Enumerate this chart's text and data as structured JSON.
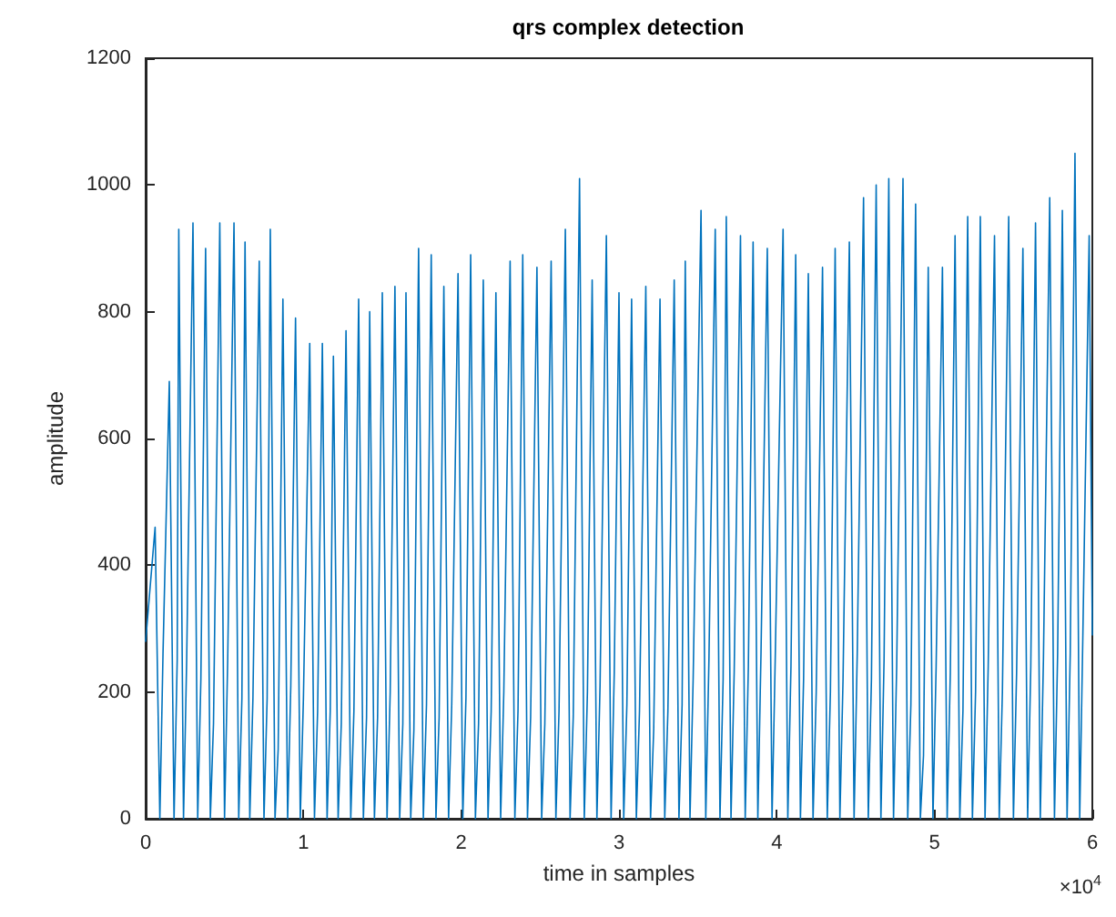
{
  "chart_data": {
    "type": "line",
    "title": "qrs complex detection",
    "xlabel": "time in samples",
    "ylabel": "amplitude",
    "annotations": [
      "×10$^{4}$"
    ],
    "xlim": [
      0,
      6
    ],
    "xticks": [
      0,
      1,
      2,
      3,
      4,
      5,
      6
    ],
    "ylim": [
      0,
      1200
    ],
    "yticks": [
      0,
      200,
      400,
      600,
      800,
      1000,
      1200
    ],
    "grid": false,
    "marker": "none",
    "line_style": "solid",
    "series": [
      {
        "color": "#0072bd",
        "x": [
          0,
          0.06,
          0.09,
          0.11,
          0.15,
          0.18,
          0.2,
          0.21,
          0.24,
          0.26,
          0.3,
          0.33,
          0.35,
          0.38,
          0.41,
          0.43,
          0.47,
          0.5,
          0.52,
          0.56,
          0.59,
          0.61,
          0.63,
          0.66,
          0.68,
          0.72,
          0.75,
          0.77,
          0.79,
          0.82,
          0.84,
          0.87,
          0.9,
          0.92,
          0.95,
          0.98,
          1.0,
          1.04,
          1.07,
          1.09,
          1.12,
          1.15,
          1.17,
          1.19,
          1.22,
          1.24,
          1.27,
          1.3,
          1.32,
          1.35,
          1.38,
          1.4,
          1.42,
          1.45,
          1.47,
          1.5,
          1.53,
          1.55,
          1.58,
          1.61,
          1.63,
          1.65,
          1.68,
          1.7,
          1.73,
          1.76,
          1.78,
          1.81,
          1.84,
          1.86,
          1.89,
          1.92,
          1.94,
          1.98,
          2.01,
          2.03,
          2.06,
          2.09,
          2.11,
          2.14,
          2.17,
          2.19,
          2.22,
          2.25,
          2.27,
          2.31,
          2.34,
          2.36,
          2.39,
          2.42,
          2.44,
          2.48,
          2.51,
          2.53,
          2.57,
          2.6,
          2.62,
          2.66,
          2.69,
          2.71,
          2.75,
          2.78,
          2.8,
          2.83,
          2.86,
          2.88,
          2.92,
          2.95,
          2.97,
          3.0,
          3.03,
          3.05,
          3.08,
          3.11,
          3.13,
          3.17,
          3.2,
          3.22,
          3.26,
          3.29,
          3.31,
          3.35,
          3.38,
          3.4,
          3.42,
          3.45,
          3.47,
          3.52,
          3.55,
          3.57,
          3.61,
          3.64,
          3.66,
          3.68,
          3.71,
          3.73,
          3.77,
          3.8,
          3.82,
          3.85,
          3.88,
          3.9,
          3.94,
          3.97,
          3.99,
          4.04,
          4.07,
          4.09,
          4.12,
          4.15,
          4.17,
          4.2,
          4.23,
          4.25,
          4.29,
          4.32,
          4.34,
          4.37,
          4.4,
          4.42,
          4.46,
          4.49,
          4.51,
          4.55,
          4.58,
          4.6,
          4.63,
          4.66,
          4.68,
          4.71,
          4.74,
          4.76,
          4.8,
          4.83,
          4.85,
          4.88,
          4.91,
          4.93,
          4.96,
          4.99,
          5.01,
          5.05,
          5.08,
          5.1,
          5.13,
          5.16,
          5.18,
          5.21,
          5.24,
          5.26,
          5.29,
          5.32,
          5.34,
          5.38,
          5.41,
          5.43,
          5.47,
          5.5,
          5.52,
          5.56,
          5.59,
          5.61,
          5.64,
          5.67,
          5.69,
          5.73,
          5.76,
          5.78,
          5.81,
          5.84,
          5.86,
          5.89,
          5.92,
          5.94,
          5.98,
          6.0
        ],
        "values": [
          280,
          460,
          0,
          260,
          690,
          0,
          250,
          930,
          0,
          250,
          940,
          0,
          220,
          900,
          0,
          150,
          940,
          0,
          250,
          940,
          0,
          190,
          910,
          0,
          190,
          880,
          0,
          190,
          930,
          0,
          110,
          820,
          0,
          210,
          790,
          0,
          190,
          750,
          0,
          170,
          750,
          0,
          170,
          730,
          0,
          150,
          770,
          0,
          170,
          820,
          0,
          160,
          800,
          0,
          160,
          830,
          0,
          200,
          840,
          0,
          150,
          830,
          0,
          140,
          900,
          0,
          180,
          890,
          0,
          160,
          840,
          0,
          180,
          860,
          0,
          190,
          890,
          0,
          150,
          850,
          0,
          170,
          830,
          0,
          200,
          880,
          0,
          170,
          890,
          0,
          160,
          870,
          0,
          150,
          880,
          0,
          170,
          930,
          0,
          160,
          1010,
          0,
          200,
          850,
          0,
          210,
          920,
          0,
          230,
          830,
          0,
          180,
          820,
          0,
          170,
          840,
          0,
          140,
          820,
          0,
          170,
          850,
          0,
          180,
          880,
          0,
          220,
          960,
          0,
          250,
          930,
          0,
          220,
          950,
          0,
          230,
          920,
          0,
          240,
          910,
          0,
          260,
          900,
          0,
          250,
          930,
          0,
          240,
          890,
          0,
          220,
          860,
          0,
          200,
          870,
          0,
          200,
          900,
          0,
          220,
          910,
          0,
          260,
          980,
          0,
          220,
          1000,
          0,
          250,
          1010,
          0,
          240,
          1010,
          0,
          180,
          970,
          0,
          100,
          870,
          0,
          240,
          870,
          0,
          230,
          920,
          0,
          170,
          950,
          0,
          200,
          950,
          0,
          240,
          920,
          0,
          200,
          950,
          0,
          230,
          900,
          0,
          240,
          940,
          0,
          250,
          980,
          0,
          260,
          960,
          0,
          260,
          1050,
          0,
          290,
          920,
          290
        ]
      }
    ]
  }
}
